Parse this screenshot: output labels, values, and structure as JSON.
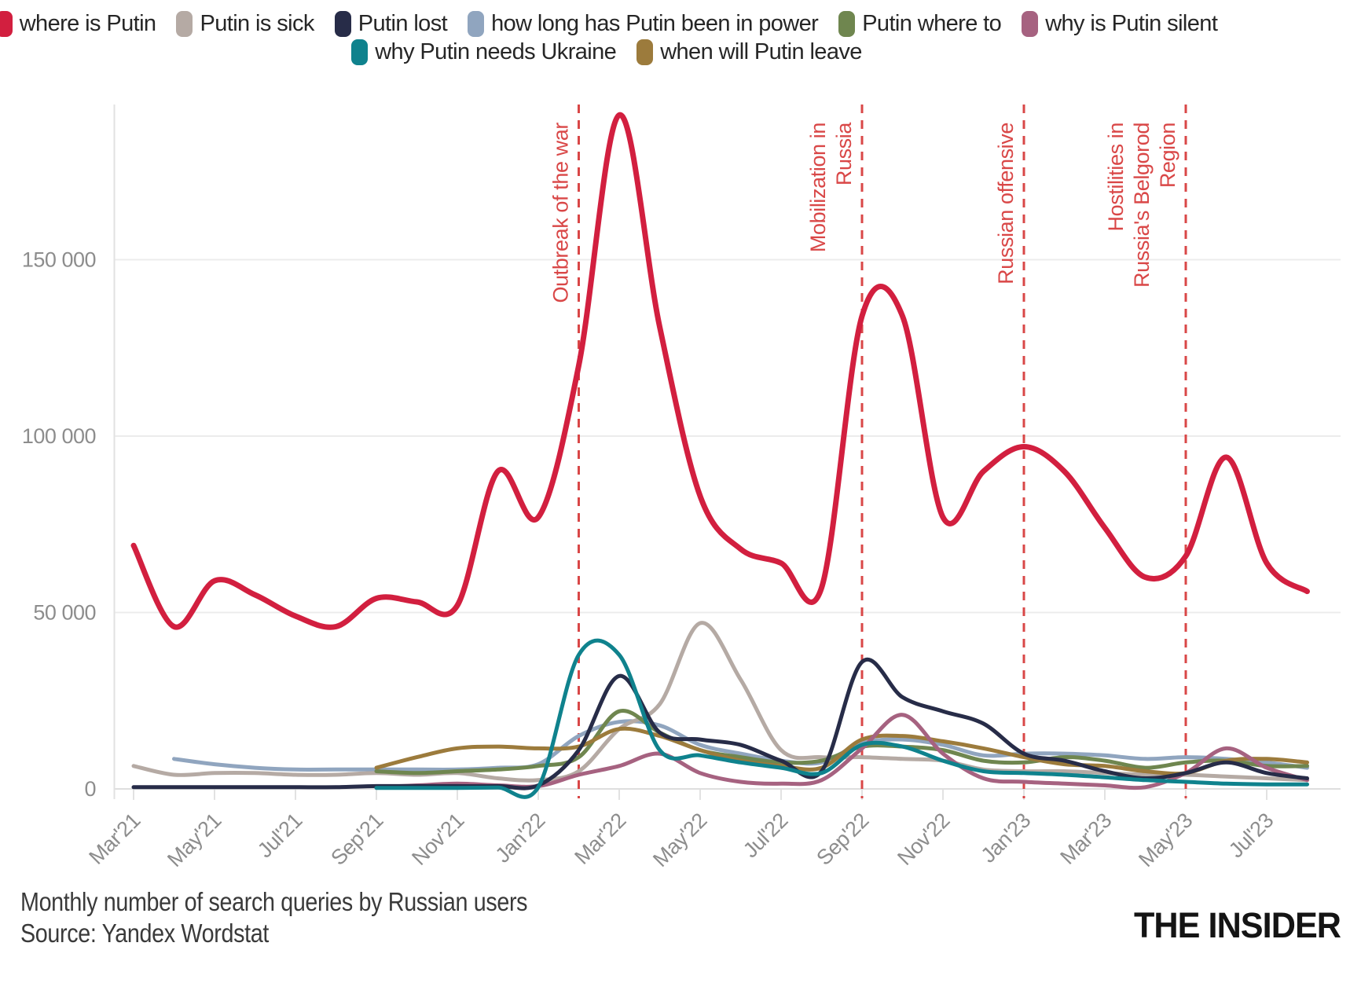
{
  "legend": {
    "rows": [
      [
        {
          "label": "where is Putin",
          "color": "#d21f3f"
        },
        {
          "label": "Putin is sick",
          "color": "#b5aaa4"
        },
        {
          "label": "Putin lost",
          "color": "#272c48"
        },
        {
          "label": "how long has Putin been in power",
          "color": "#90a5bf"
        },
        {
          "label": "Putin where to",
          "color": "#6f864f"
        },
        {
          "label": "why is Putin silent",
          "color": "#a66280"
        }
      ],
      [
        {
          "label": "why Putin needs Ukraine",
          "color": "#0f828d"
        },
        {
          "label": "when will Putin leave",
          "color": "#9c7b3c"
        }
      ]
    ]
  },
  "chart_data": {
    "type": "line",
    "title": "Monthly number of search queries by Russian users",
    "x": [
      "Mar'21",
      "Apr'21",
      "May'21",
      "Jun'21",
      "Jul'21",
      "Aug'21",
      "Sep'21",
      "Oct'21",
      "Nov'21",
      "Dec'21",
      "Jan'22",
      "Feb'22",
      "Mar'22",
      "Apr'22",
      "May'22",
      "Jun'22",
      "Jul'22",
      "Aug'22",
      "Sep'22",
      "Oct'22",
      "Nov'22",
      "Dec'22",
      "Jan'23",
      "Feb'23",
      "Mar'23",
      "Apr'23",
      "May'23",
      "Jun'23",
      "Jul'23",
      "Aug'23"
    ],
    "xtick_step": 2,
    "xticklabels": [
      "Mar'21",
      "May'21",
      "Jul'21",
      "Sep'21",
      "Nov'21",
      "Jan'22",
      "Mar'22",
      "May'22",
      "Jul'22",
      "Sep'22",
      "Nov'22",
      "Jan'23",
      "Mar'23",
      "May'23",
      "Jul'23"
    ],
    "ylim": [
      0,
      195000
    ],
    "yticks": [
      {
        "value": 0,
        "label": "0"
      },
      {
        "value": 50000,
        "label": "50 000"
      },
      {
        "value": 100000,
        "label": "100 000"
      },
      {
        "value": 150000,
        "label": "150 000"
      }
    ],
    "grid": "horizontal",
    "legend_position": "top",
    "series": [
      {
        "name": "where is Putin",
        "color": "#d21f3f",
        "width": 7,
        "values": [
          69000,
          46000,
          59000,
          55000,
          49000,
          46000,
          54000,
          53000,
          52000,
          90000,
          77000,
          120000,
          191000,
          131000,
          83000,
          68000,
          64000,
          57000,
          134000,
          134000,
          77000,
          90000,
          97000,
          90000,
          74000,
          60000,
          66000,
          94000,
          64000,
          56000
        ]
      },
      {
        "name": "Putin is sick",
        "color": "#b5aaa4",
        "width": 5,
        "values": [
          6500,
          4000,
          4500,
          4500,
          4000,
          4000,
          4500,
          4000,
          4500,
          3000,
          2500,
          5000,
          17000,
          24000,
          47000,
          31000,
          11000,
          9000,
          9000,
          8500,
          8000,
          5500,
          5000,
          5000,
          4500,
          4000,
          4000,
          3500,
          3000,
          2500
        ]
      },
      {
        "name": "Putin lost",
        "color": "#272c48",
        "width": 5,
        "values": [
          500,
          500,
          500,
          500,
          500,
          500,
          800,
          800,
          800,
          800,
          1000,
          11000,
          32000,
          16000,
          14000,
          12500,
          8000,
          5000,
          36000,
          26000,
          22000,
          18500,
          10000,
          8000,
          5000,
          3000,
          4500,
          7500,
          4500,
          3000
        ]
      },
      {
        "name": "how long has Putin been in power",
        "color": "#90a5bf",
        "width": 5,
        "values": [
          null,
          8500,
          7000,
          6000,
          5500,
          5500,
          5500,
          5500,
          5500,
          6000,
          7000,
          15000,
          19000,
          18000,
          12500,
          10000,
          8000,
          7500,
          13000,
          14000,
          12500,
          9500,
          10000,
          10000,
          9500,
          8500,
          9000,
          8500,
          7500,
          6000
        ]
      },
      {
        "name": "Putin where to",
        "color": "#6f864f",
        "width": 5,
        "values": [
          null,
          null,
          null,
          null,
          null,
          null,
          5000,
          4500,
          5000,
          5500,
          6500,
          9000,
          22000,
          16000,
          11000,
          9000,
          7500,
          8000,
          12000,
          12000,
          11000,
          8000,
          7500,
          9000,
          8000,
          6000,
          7500,
          8000,
          6500,
          6500
        ]
      },
      {
        "name": "why is Putin silent",
        "color": "#a66280",
        "width": 5,
        "values": [
          null,
          null,
          null,
          null,
          null,
          null,
          500,
          1000,
          1500,
          1000,
          800,
          4000,
          6500,
          10000,
          4500,
          2000,
          1500,
          2500,
          11500,
          21000,
          10000,
          3000,
          2000,
          1500,
          1000,
          500,
          4500,
          11500,
          6000,
          2500
        ]
      },
      {
        "name": "why Putin needs Ukraine",
        "color": "#0f828d",
        "width": 5,
        "values": [
          null,
          null,
          null,
          null,
          null,
          null,
          300,
          300,
          300,
          400,
          500,
          38000,
          38000,
          11000,
          9500,
          7500,
          6000,
          4500,
          12500,
          12000,
          8000,
          5000,
          4500,
          4000,
          3300,
          2500,
          2000,
          1500,
          1300,
          1300
        ]
      },
      {
        "name": "when will Putin leave",
        "color": "#9c7b3c",
        "width": 5,
        "values": [
          null,
          null,
          null,
          null,
          null,
          null,
          6000,
          9000,
          11500,
          12000,
          11500,
          12000,
          17000,
          15000,
          11000,
          8000,
          6500,
          6000,
          14000,
          15000,
          13500,
          11500,
          9000,
          7000,
          6500,
          5000,
          4500,
          8000,
          8500,
          7500
        ]
      }
    ],
    "draw_order": [
      "how long has Putin been in power",
      "Putin is sick",
      "Putin where to",
      "when will Putin leave",
      "why is Putin silent",
      "Putin lost",
      "why Putin needs Ukraine",
      "where is Putin"
    ],
    "annotations": [
      {
        "lines": [
          "Outbreak of the war"
        ],
        "index": 11,
        "month": "Feb'22"
      },
      {
        "lines": [
          "Mobilization in",
          "Russia"
        ],
        "index": 18,
        "month": "Sep'22"
      },
      {
        "lines": [
          "Russian offensive"
        ],
        "index": 22,
        "month": "Jan'23"
      },
      {
        "lines": [
          "Hostilities in",
          "Russia's Belgorod",
          "Region"
        ],
        "index": 26,
        "month": "May'23"
      }
    ],
    "annotation_color": "#d94747"
  },
  "colors": {
    "background": "#ffffff",
    "gridline": "#ececec",
    "zero_line": "#dedede",
    "axis_line": "#e2e2e2",
    "axis_text": "#8d8d8d",
    "footer_text": "#3a3a3a"
  },
  "footer": {
    "caption": "Monthly number of search queries by Russian users",
    "source": "Source: Yandex Wordstat",
    "logo": "THE INSIDER"
  }
}
